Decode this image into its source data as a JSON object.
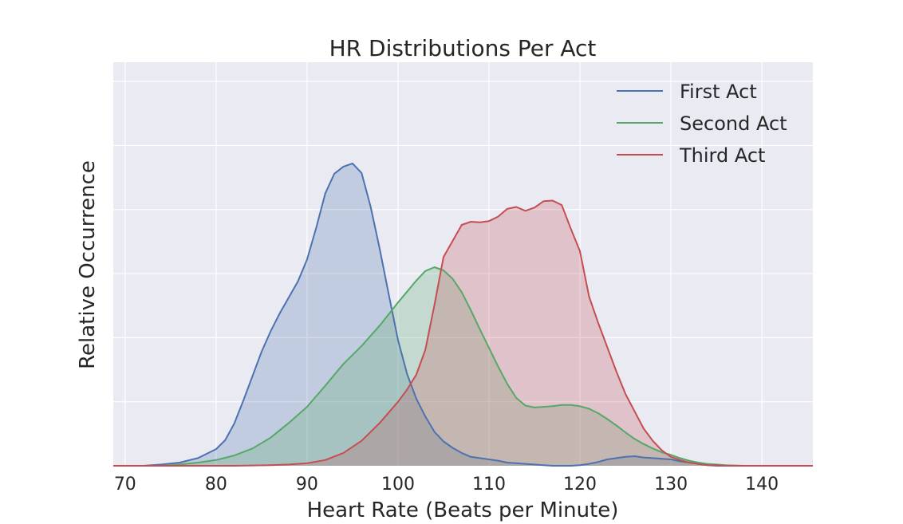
{
  "chart_data": {
    "type": "area",
    "title": "HR Distributions Per Act",
    "xlabel": "Heart Rate (Beats per Minute)",
    "ylabel": "Relative Occurrence",
    "xlim": [
      68.7,
      145.6
    ],
    "ylim": [
      0,
      0.063
    ],
    "xticks": [
      70,
      80,
      90,
      100,
      110,
      120,
      130,
      140
    ],
    "y_grid_lines": [
      0.01,
      0.02,
      0.03,
      0.04,
      0.05,
      0.06
    ],
    "grid": true,
    "legend_position": "top-right",
    "series": [
      {
        "name": "First Act",
        "color": "#4c72b0",
        "x": [
          68.7,
          72,
          74,
          76,
          78,
          80,
          81,
          82,
          83,
          84,
          85,
          86,
          87,
          88,
          89,
          90,
          91,
          92,
          93,
          94,
          95,
          96,
          97,
          98,
          99,
          100,
          101,
          102,
          103,
          104,
          105,
          106,
          107,
          108,
          109,
          110,
          111,
          112,
          113,
          114,
          115,
          116,
          117,
          118,
          119,
          120,
          121,
          122,
          123,
          124,
          125,
          126,
          127,
          128,
          129,
          130,
          131,
          132,
          133,
          134,
          135,
          136,
          138,
          140,
          145.6
        ],
        "values": [
          0,
          0,
          0.0002,
          0.0005,
          0.0012,
          0.0026,
          0.004,
          0.0066,
          0.0102,
          0.014,
          0.0178,
          0.021,
          0.0238,
          0.0263,
          0.0288,
          0.0322,
          0.0371,
          0.0425,
          0.0456,
          0.0467,
          0.0472,
          0.0457,
          0.0404,
          0.0338,
          0.0266,
          0.0196,
          0.0143,
          0.0105,
          0.0077,
          0.0053,
          0.0038,
          0.0028,
          0.002,
          0.0014,
          0.0012,
          0.001,
          0.0008,
          0.0005,
          0.0004,
          0.0003,
          0.0002,
          0.0001,
          0.0,
          0.0,
          0.0,
          0.0001,
          0.0003,
          0.0006,
          0.001,
          0.0012,
          0.0014,
          0.0015,
          0.0013,
          0.0012,
          0.0011,
          0.001,
          0.0007,
          0.0005,
          0.0003,
          0.0001,
          0.0,
          0.0,
          0.0,
          0.0,
          0
        ]
      },
      {
        "name": "Second Act",
        "color": "#55a868",
        "x": [
          68.7,
          74,
          76,
          78,
          80,
          82,
          84,
          86,
          88,
          90,
          92,
          94,
          96,
          98,
          100,
          102,
          103,
          104,
          105,
          106,
          107,
          108,
          109,
          110,
          111,
          112,
          113,
          114,
          115,
          116,
          117,
          118,
          119,
          120,
          121,
          122,
          123,
          124,
          125,
          126,
          127,
          128,
          129,
          130,
          131,
          132,
          133,
          134,
          135,
          136,
          138,
          140,
          145.6
        ],
        "values": [
          0,
          0,
          0.0002,
          0.0005,
          0.0009,
          0.0016,
          0.0027,
          0.0044,
          0.0067,
          0.0092,
          0.0125,
          0.0159,
          0.0187,
          0.0219,
          0.0255,
          0.0289,
          0.0304,
          0.031,
          0.0305,
          0.0292,
          0.0271,
          0.0243,
          0.0213,
          0.0184,
          0.0155,
          0.0128,
          0.0106,
          0.0094,
          0.0091,
          0.0092,
          0.0093,
          0.0095,
          0.0095,
          0.0093,
          0.0089,
          0.0082,
          0.0073,
          0.0063,
          0.0052,
          0.0042,
          0.0034,
          0.0027,
          0.0021,
          0.0017,
          0.0012,
          0.0008,
          0.0005,
          0.0003,
          0.0002,
          0.0001,
          0.0,
          0.0,
          0
        ]
      },
      {
        "name": "Third Act",
        "color": "#c44e52",
        "x": [
          68.7,
          82,
          86,
          88,
          90,
          92,
          94,
          96,
          98,
          100,
          101,
          102,
          103,
          104,
          105,
          106,
          107,
          108,
          109,
          110,
          111,
          112,
          113,
          114,
          115,
          116,
          117,
          118,
          119,
          120,
          121,
          122,
          123,
          124,
          125,
          126,
          127,
          128,
          129,
          130,
          131,
          132,
          133,
          134,
          135,
          136,
          138,
          140,
          145.6
        ],
        "values": [
          0,
          0,
          0.0001,
          0.0002,
          0.0004,
          0.0009,
          0.002,
          0.0039,
          0.0067,
          0.01,
          0.0119,
          0.0142,
          0.0181,
          0.0251,
          0.0326,
          0.0351,
          0.0376,
          0.0381,
          0.038,
          0.0382,
          0.0389,
          0.0401,
          0.0404,
          0.0398,
          0.0403,
          0.0413,
          0.0414,
          0.0407,
          0.037,
          0.0335,
          0.0264,
          0.0223,
          0.0185,
          0.0147,
          0.0112,
          0.0085,
          0.0058,
          0.0039,
          0.0024,
          0.0014,
          0.0009,
          0.0005,
          0.0003,
          0.0001,
          0.0001,
          0.0,
          0.0,
          0.0,
          0
        ]
      }
    ]
  }
}
